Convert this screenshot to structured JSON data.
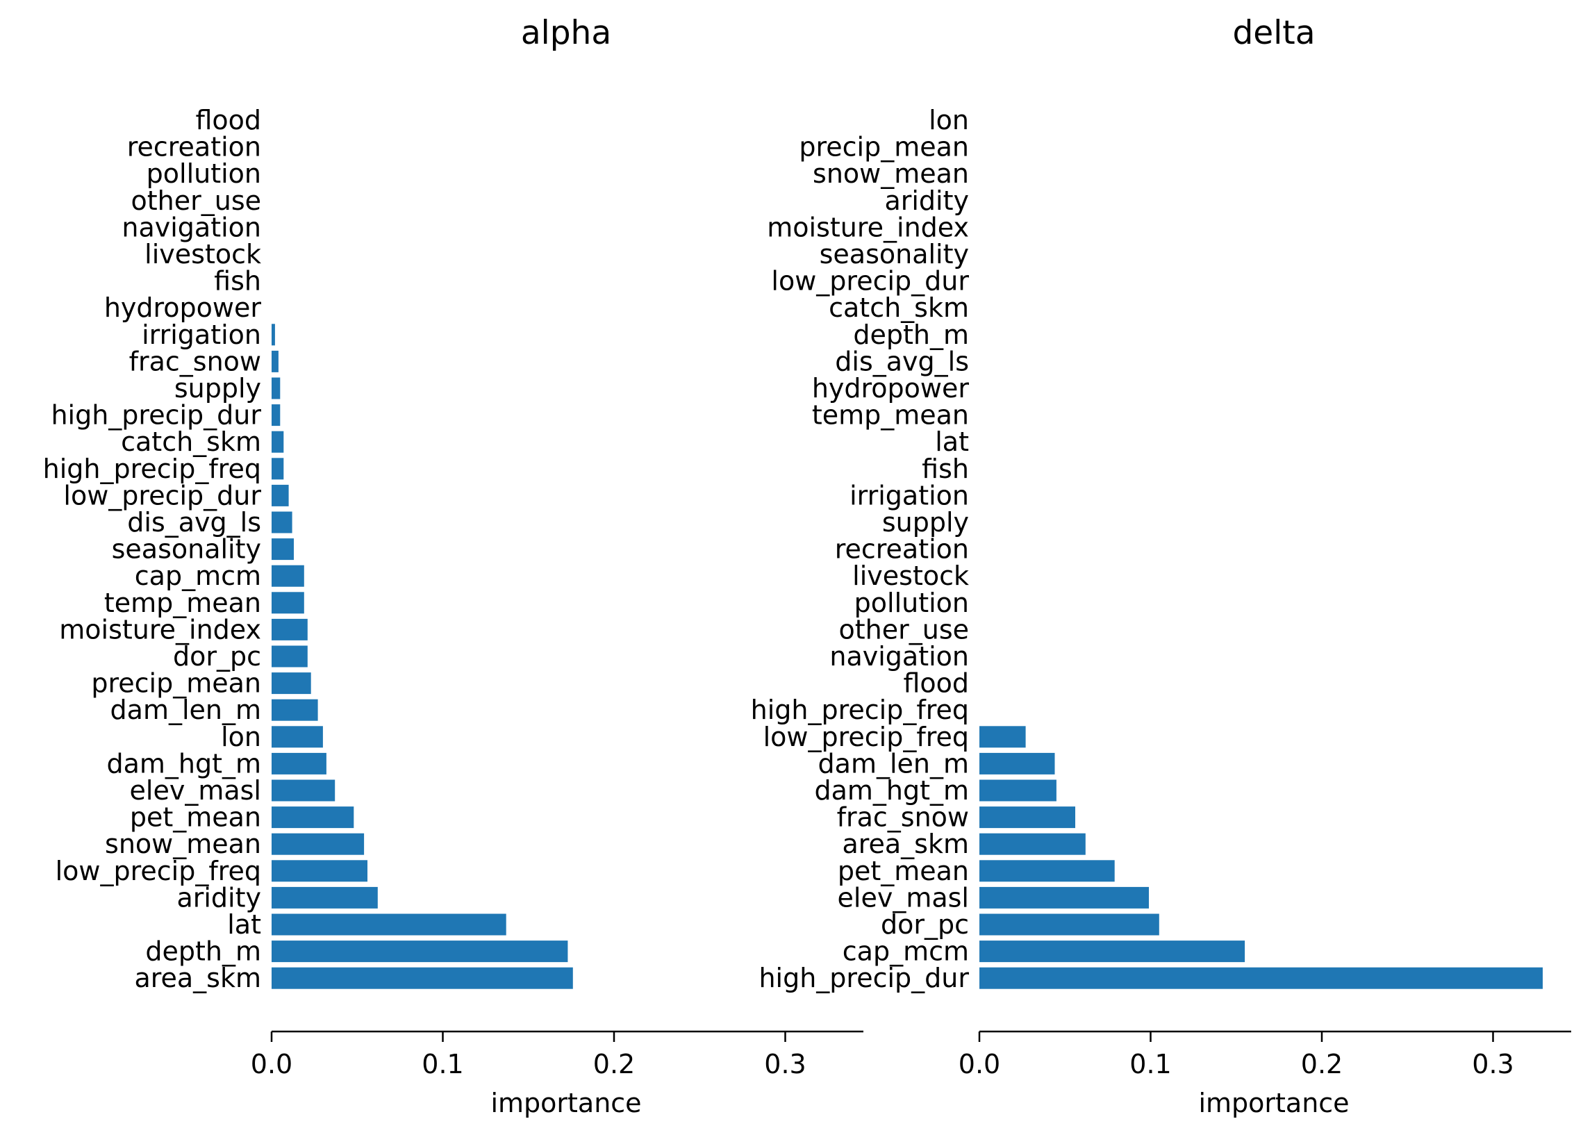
{
  "chart_data": [
    {
      "type": "bar",
      "orientation": "horizontal",
      "title": "alpha",
      "xlabel": "importance",
      "ylabel": "",
      "xlim": [
        0,
        0.345
      ],
      "xticks": [
        0.0,
        0.1,
        0.2,
        0.3
      ],
      "xtick_labels": [
        "0.0",
        "0.1",
        "0.2",
        "0.3"
      ],
      "grid": false,
      "bar_color": "#1f77b4",
      "categories": [
        "flood",
        "recreation",
        "pollution",
        "other_use",
        "navigation",
        "livestock",
        "fish",
        "hydropower",
        "irrigation",
        "frac_snow",
        "supply",
        "high_precip_dur",
        "catch_skm",
        "high_precip_freq",
        "low_precip_dur",
        "dis_avg_ls",
        "seasonality",
        "cap_mcm",
        "temp_mean",
        "moisture_index",
        "dor_pc",
        "precip_mean",
        "dam_len_m",
        "lon",
        "dam_hgt_m",
        "elev_masl",
        "pet_mean",
        "snow_mean",
        "low_precip_freq",
        "aridity",
        "lat",
        "depth_m",
        "area_skm"
      ],
      "values": [
        0.0,
        0.0,
        0.0,
        0.0,
        0.0,
        0.0,
        0.0,
        0.0,
        0.002,
        0.004,
        0.005,
        0.005,
        0.007,
        0.007,
        0.01,
        0.012,
        0.013,
        0.019,
        0.019,
        0.021,
        0.021,
        0.023,
        0.027,
        0.03,
        0.032,
        0.037,
        0.048,
        0.054,
        0.056,
        0.062,
        0.137,
        0.173,
        0.176
      ]
    },
    {
      "type": "bar",
      "orientation": "horizontal",
      "title": "delta",
      "xlabel": "importance",
      "ylabel": "",
      "xlim": [
        0,
        0.345
      ],
      "xticks": [
        0.0,
        0.1,
        0.2,
        0.3
      ],
      "xtick_labels": [
        "0.0",
        "0.1",
        "0.2",
        "0.3"
      ],
      "grid": false,
      "bar_color": "#1f77b4",
      "categories": [
        "lon",
        "precip_mean",
        "snow_mean",
        "aridity",
        "moisture_index",
        "seasonality",
        "low_precip_dur",
        "catch_skm",
        "depth_m",
        "dis_avg_ls",
        "hydropower",
        "temp_mean",
        "lat",
        "fish",
        "irrigation",
        "supply",
        "recreation",
        "livestock",
        "pollution",
        "other_use",
        "navigation",
        "flood",
        "high_precip_freq",
        "low_precip_freq",
        "dam_len_m",
        "dam_hgt_m",
        "frac_snow",
        "area_skm",
        "pet_mean",
        "elev_masl",
        "dor_pc",
        "cap_mcm",
        "high_precip_dur"
      ],
      "values": [
        0.0,
        0.0,
        0.0,
        0.0,
        0.0,
        0.0,
        0.0,
        0.0,
        0.0,
        0.0,
        0.0,
        0.0,
        0.0,
        0.0,
        0.0,
        0.0,
        0.0,
        0.0,
        0.0,
        0.0,
        0.0,
        0.0,
        0.0,
        0.027,
        0.044,
        0.045,
        0.056,
        0.062,
        0.079,
        0.099,
        0.105,
        0.155,
        0.329
      ]
    }
  ]
}
